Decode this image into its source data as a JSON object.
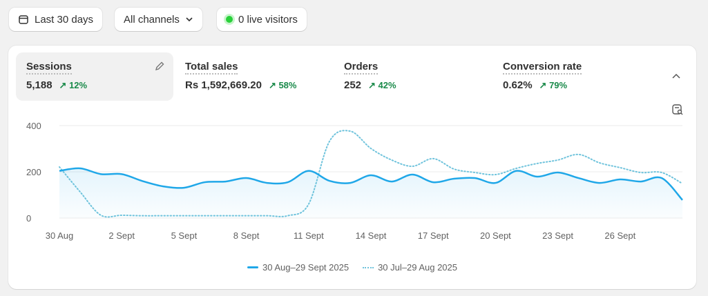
{
  "toolbar": {
    "date_range": "Last 30 days",
    "channels": "All channels",
    "live_visitors": "0 live visitors"
  },
  "metrics": [
    {
      "label": "Sessions",
      "value": "5,188",
      "delta": "12%"
    },
    {
      "label": "Total sales",
      "value": "Rs 1,592,669.20",
      "delta": "58%"
    },
    {
      "label": "Orders",
      "value": "252",
      "delta": "42%"
    },
    {
      "label": "Conversion rate",
      "value": "0.62%",
      "delta": "79%"
    }
  ],
  "colors": {
    "current": "#1fa7e8",
    "previous": "#6fc3dc",
    "positive": "#1a8a4a"
  },
  "chart_data": {
    "type": "line",
    "ylim": [
      0,
      400
    ],
    "yticks": [
      "0",
      "200",
      "400"
    ],
    "xticks": [
      "30 Aug",
      "2 Sept",
      "5 Sept",
      "8 Sept",
      "11 Sept",
      "14 Sept",
      "17 Sept",
      "20 Sept",
      "23 Sept",
      "26 Sept"
    ],
    "series": [
      {
        "name": "30 Aug–29 Sept 2025",
        "style": "solid",
        "values": [
          204,
          215,
          190,
          190,
          160,
          137,
          131,
          155,
          158,
          173,
          152,
          155,
          204,
          161,
          152,
          185,
          158,
          188,
          155,
          170,
          173,
          152,
          204,
          179,
          197,
          173,
          152,
          167,
          158,
          173,
          78
        ]
      },
      {
        "name": "30 Jul–29 Aug 2025",
        "style": "dotted",
        "values": [
          221,
          113,
          12,
          12,
          10,
          10,
          10,
          10,
          10,
          10,
          10,
          10,
          60,
          331,
          376,
          301,
          251,
          224,
          257,
          212,
          197,
          188,
          215,
          236,
          251,
          275,
          239,
          218,
          197,
          197,
          149
        ]
      }
    ]
  }
}
